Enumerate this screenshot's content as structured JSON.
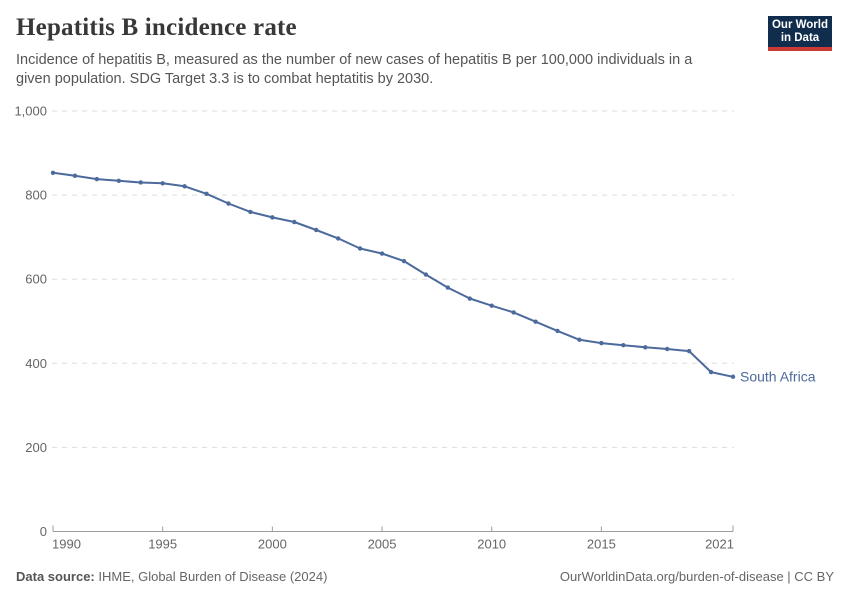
{
  "header": {
    "title": "Hepatitis B incidence rate",
    "subtitle_line1": "Incidence of hepatitis B, measured as the number of new cases of hepatitis B per 100,000 individuals in a",
    "subtitle_line2": "given population. SDG Target 3.3 is to combat heptatitis by 2030.",
    "logo": {
      "line1": "Our World",
      "line2": "in Data",
      "bg_color": "#102d4e",
      "accent_color": "#cb3b34"
    }
  },
  "chart_data": {
    "type": "line",
    "title": "Hepatitis B incidence rate",
    "x": [
      1990,
      1991,
      1992,
      1993,
      1994,
      1995,
      1996,
      1997,
      1998,
      1999,
      2000,
      2001,
      2002,
      2003,
      2004,
      2005,
      2006,
      2007,
      2008,
      2009,
      2010,
      2011,
      2012,
      2013,
      2014,
      2015,
      2016,
      2017,
      2018,
      2019,
      2020,
      2021
    ],
    "series": [
      {
        "name": "South Africa",
        "color": "#4c6a9c",
        "values": [
          853,
          846,
          838,
          834,
          830,
          828,
          821,
          803,
          780,
          760,
          747,
          736,
          717,
          697,
          673,
          661,
          643,
          611,
          580,
          554,
          537,
          521,
          499,
          477,
          456,
          448,
          443,
          438,
          434,
          429,
          379,
          368
        ]
      }
    ],
    "xlim": [
      1990,
      2021
    ],
    "ylim": [
      0,
      1000
    ],
    "x_ticks": [
      1990,
      1995,
      2000,
      2005,
      2010,
      2015,
      2021
    ],
    "y_ticks": [
      0,
      200,
      400,
      600,
      800,
      1000
    ],
    "y_tick_labels": [
      "0",
      "200",
      "400",
      "600",
      "800",
      "1,000"
    ],
    "grid": "horizontal-dashed",
    "legend_position": "end-of-line",
    "end_label": "South Africa",
    "colors": {
      "gridline": "#dedede",
      "axis": "#9e9e9e",
      "tick_label": "#666666"
    }
  },
  "footer": {
    "source_label": "Data source:",
    "source_text": " IHME, Global Burden of Disease (2024)",
    "license_text": "OurWorldinData.org/burden-of-disease | CC BY"
  }
}
